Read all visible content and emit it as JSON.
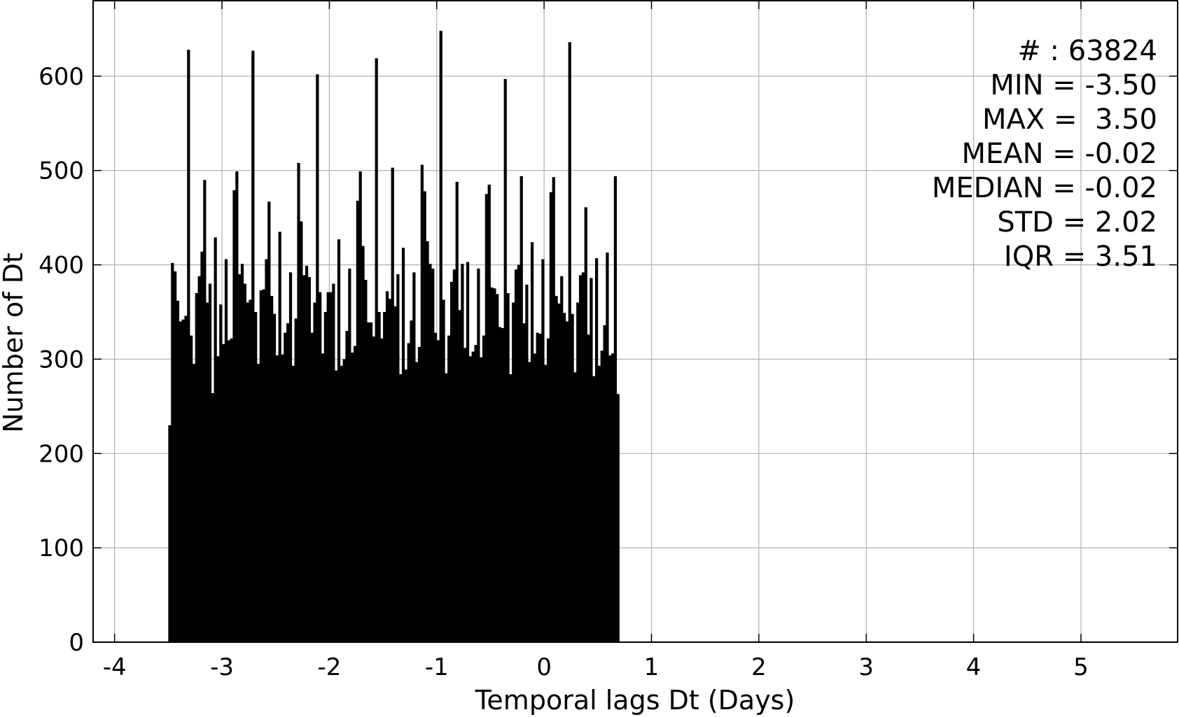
{
  "chart_data": {
    "type": "bar",
    "title": "",
    "xlabel": "Temporal lags Dt (Days)",
    "ylabel": "Number of Dt",
    "xlim": [
      -4.2,
      5.9
    ],
    "ylim": [
      0,
      680
    ],
    "xticks": [
      -4,
      -3,
      -2,
      -1,
      0,
      1,
      2,
      3,
      4,
      5
    ],
    "xtick_labels": [
      "-4",
      "-3",
      "-2",
      "-1",
      "0",
      "1",
      "2",
      "3",
      "4",
      "5"
    ],
    "yticks": [
      0,
      100,
      200,
      300,
      400,
      500,
      600
    ],
    "ytick_labels": [
      "0",
      "100",
      "200",
      "300",
      "400",
      "500",
      "600"
    ],
    "grid": true,
    "bar_color": "#000000",
    "bin_width": 0.025,
    "bin_start": -3.5,
    "values": [
      230,
      402,
      393,
      362,
      340,
      342,
      346,
      628,
      325,
      295,
      370,
      388,
      414,
      490,
      360,
      380,
      264,
      429,
      303,
      358,
      316,
      406,
      320,
      322,
      479,
      499,
      390,
      401,
      380,
      360,
      363,
      627,
      350,
      295,
      373,
      374,
      406,
      467,
      367,
      348,
      304,
      435,
      305,
      328,
      338,
      392,
      293,
      343,
      508,
      446,
      389,
      399,
      387,
      328,
      360,
      602,
      371,
      306,
      350,
      371,
      371,
      380,
      288,
      427,
      293,
      300,
      330,
      396,
      307,
      314,
      468,
      499,
      420,
      384,
      339,
      339,
      324,
      619,
      350,
      322,
      350,
      372,
      364,
      503,
      356,
      390,
      284,
      418,
      289,
      317,
      341,
      392,
      297,
      313,
      506,
      478,
      425,
      401,
      396,
      328,
      320,
      648,
      363,
      285,
      325,
      382,
      395,
      488,
      352,
      401,
      312,
      403,
      303,
      308,
      315,
      396,
      302,
      325,
      475,
      485,
      376,
      375,
      369,
      334,
      333,
      597,
      370,
      284,
      360,
      395,
      400,
      494,
      338,
      379,
      297,
      424,
      306,
      328,
      327,
      406,
      294,
      322,
      477,
      493,
      367,
      359,
      388,
      349,
      340,
      636,
      348,
      286,
      360,
      389,
      392,
      461,
      326,
      386,
      282,
      407,
      293,
      309,
      336,
      413,
      304,
      306,
      494,
      263
    ]
  },
  "stats_box": {
    "count": "# : 63824",
    "min": "MIN = -3.50",
    "max": "MAX =  3.50",
    "mean": "MEAN = -0.02",
    "median": "MEDIAN = -0.02",
    "std": "STD = 2.02",
    "iqr": "IQR = 3.51"
  }
}
